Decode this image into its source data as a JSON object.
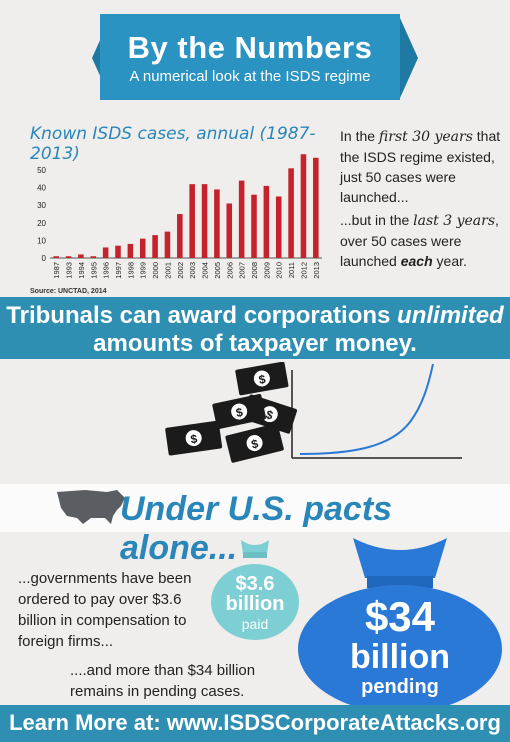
{
  "banner": {
    "title": "By the Numbers",
    "subtitle": "A numerical look at the ISDS regime"
  },
  "chart_data": {
    "type": "bar",
    "title": "Known ISDS cases, annual (1987-2013)",
    "source": "Source: UNCTAD, 2014",
    "categories": [
      "1987",
      "1993",
      "1994",
      "1995",
      "1996",
      "1997",
      "1998",
      "1999",
      "2000",
      "2001",
      "2002",
      "2003",
      "2004",
      "2005",
      "2006",
      "2007",
      "2008",
      "2009",
      "2010",
      "2011",
      "2012",
      "2013"
    ],
    "values": [
      1,
      1,
      2,
      1,
      6,
      7,
      8,
      11,
      13,
      15,
      25,
      42,
      42,
      39,
      31,
      44,
      36,
      41,
      35,
      51,
      59,
      57
    ],
    "ylim": [
      0,
      58
    ],
    "yticks": [
      0,
      10,
      20,
      30,
      40,
      50
    ],
    "color": "#c4232b",
    "grid": false
  },
  "right_text": {
    "p1_a": "In the ",
    "p1_b": "first 30 years",
    "p1_c": " that the ISDS regime existed, just 50 cases were launched...",
    "p2_a": "...but in the ",
    "p2_b": "last 3 years",
    "p2_c": ", over 50 cases were launched ",
    "p2_d": "each",
    "p2_e": " year."
  },
  "tribunal": {
    "line1_a": "Tribunals can award corporations ",
    "line1_b": "unlimited",
    "line2": "amounts of taxpayer money."
  },
  "us_pacts": {
    "heading": "Under U.S. pacts alone..."
  },
  "lower": {
    "left_text": "...governments have been ordered to pay over $3.6 billion in compensation to foreign firms...",
    "bottom_text": "....and more than $34 billion remains in pending cases.",
    "small_bag_amount": "$3.6",
    "small_bag_unit": "billion",
    "small_bag_label": "paid",
    "big_bag_amount": "$34",
    "big_bag_unit": "billion",
    "big_bag_label": "pending"
  },
  "footer": {
    "text": "Learn More at: www.ISDSCorporateAttacks.org"
  },
  "icons": {
    "money": "money-bill-icon",
    "us_map": "us-map-icon",
    "bag": "money-bag-icon"
  },
  "colors": {
    "brand_blue": "#2a93c1",
    "teal": "#2f8fb3",
    "light_teal": "#7ecfd4",
    "deep_blue": "#2a79d6",
    "bar_red": "#c4232b"
  }
}
